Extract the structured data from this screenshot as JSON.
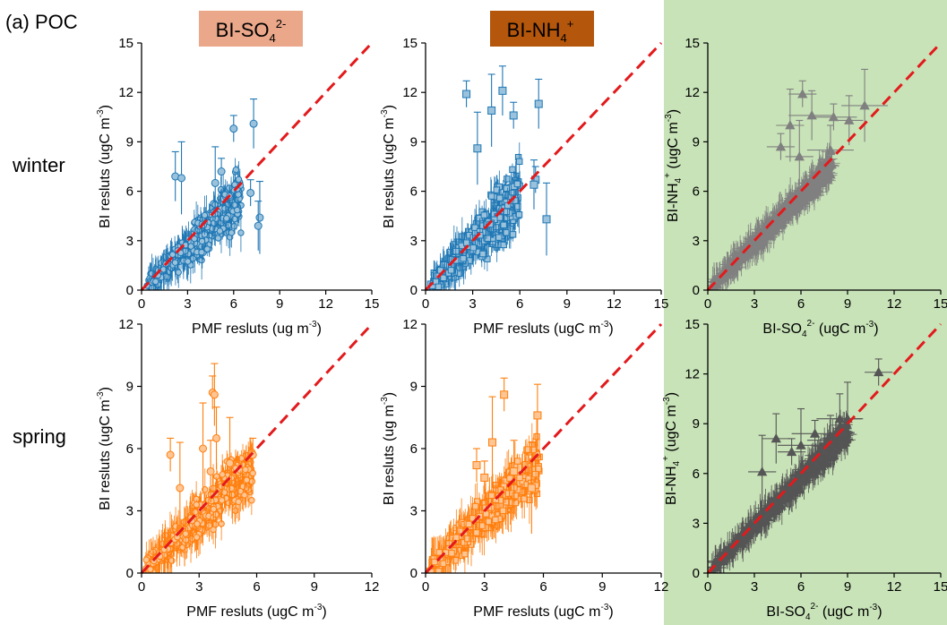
{
  "figure": {
    "panel_label": "(a) POC",
    "row_labels": [
      "winter",
      "spring"
    ],
    "header_badges": [
      {
        "base": "BI-SO",
        "sub": "4",
        "sup": "2-",
        "color": "#eaa78a"
      },
      {
        "base": "BI-NH",
        "sub": "4",
        "sup": "+",
        "color": "#b4560b"
      }
    ],
    "highlight_color": "#c8e3b8"
  },
  "chart_data": [
    {
      "id": "winter-so4",
      "type": "scatter",
      "title": "",
      "marker": "circle",
      "color": "#1f77b4",
      "xlabel": "PMF resluts (ug m",
      "xlabel_sup": "-3",
      "ylabel": "BI resluts (ugC m",
      "ylabel_sup": "-3",
      "xlim": [
        0,
        15
      ],
      "ylim": [
        0,
        15
      ],
      "xticks": [
        "0",
        "3",
        "6",
        "9",
        "12",
        "15"
      ],
      "yticks": [
        "0",
        "3",
        "6",
        "9",
        "12",
        "15"
      ],
      "reference_line": "y = x",
      "cloud": {
        "n": 420,
        "x_range": [
          0.3,
          6.5
        ],
        "slope": 0.85,
        "spread": 1.2
      },
      "points": [
        {
          "x": 6.0,
          "y": 9.8
        },
        {
          "x": 7.3,
          "y": 10.1
        },
        {
          "x": 7.7,
          "y": 4.4
        },
        {
          "x": 7.1,
          "y": 5.9
        },
        {
          "x": 2.2,
          "y": 6.9
        },
        {
          "x": 2.6,
          "y": 6.8
        },
        {
          "x": 5.2,
          "y": 7.2
        },
        {
          "x": 7.6,
          "y": 3.9
        },
        {
          "x": 4.8,
          "y": 6.5
        }
      ]
    },
    {
      "id": "winter-nh4",
      "type": "scatter",
      "title": "",
      "marker": "square",
      "color": "#1f77b4",
      "xlabel": "PMF resluts (ugC m",
      "xlabel_sup": "-3",
      "ylabel": "BI resluts (ugC m",
      "ylabel_sup": "-3",
      "xlim": [
        0,
        15
      ],
      "ylim": [
        0,
        15
      ],
      "xticks": [
        "0",
        "3",
        "6",
        "9",
        "12",
        "15"
      ],
      "yticks": [
        "0",
        "3",
        "6",
        "9",
        "12",
        "15"
      ],
      "reference_line": "y = x",
      "cloud": {
        "n": 420,
        "x_range": [
          0.3,
          6.0
        ],
        "slope": 0.95,
        "spread": 1.4
      },
      "points": [
        {
          "x": 2.6,
          "y": 11.9
        },
        {
          "x": 4.9,
          "y": 12.1
        },
        {
          "x": 4.2,
          "y": 10.9
        },
        {
          "x": 5.6,
          "y": 10.6
        },
        {
          "x": 7.2,
          "y": 11.3
        },
        {
          "x": 7.7,
          "y": 4.3
        },
        {
          "x": 7.0,
          "y": 6.7
        },
        {
          "x": 6.9,
          "y": 6.4
        },
        {
          "x": 3.3,
          "y": 8.6
        }
      ]
    },
    {
      "id": "winter-compare",
      "type": "scatter",
      "title": "",
      "marker": "triangle",
      "color": "#808080",
      "xlabel": "",
      "ylabel": "",
      "xlim": [
        0,
        15
      ],
      "ylim": [
        0,
        15
      ],
      "xticks": [
        "0",
        "3",
        "6",
        "9",
        "12",
        "15"
      ],
      "yticks": [
        "0",
        "3",
        "6",
        "9",
        "12",
        "15"
      ],
      "reference_line": "y = x",
      "cloud": {
        "n": 520,
        "x_range": [
          0.2,
          8.0
        ],
        "slope": 0.95,
        "spread": 0.55
      },
      "points": [
        {
          "x": 6.1,
          "y": 11.9
        },
        {
          "x": 6.7,
          "y": 10.6
        },
        {
          "x": 5.3,
          "y": 10.0
        },
        {
          "x": 8.1,
          "y": 10.5
        },
        {
          "x": 9.1,
          "y": 10.3
        },
        {
          "x": 10.1,
          "y": 11.2
        },
        {
          "x": 4.7,
          "y": 8.7
        },
        {
          "x": 7.9,
          "y": 8.5
        },
        {
          "x": 5.9,
          "y": 8.1
        }
      ]
    },
    {
      "id": "spring-so4",
      "type": "scatter",
      "title": "",
      "marker": "circle",
      "color": "#ff7f0e",
      "xlabel": "PMF resluts (ugC m",
      "xlabel_sup": "-3",
      "ylabel": "BI resluts (ugC m",
      "ylabel_sup": "-3",
      "xlim": [
        0,
        12
      ],
      "ylim": [
        0,
        12
      ],
      "xticks": [
        "0",
        "3",
        "6",
        "9",
        "12"
      ],
      "yticks": [
        "0",
        "3",
        "6",
        "9",
        "12"
      ],
      "reference_line": "y = x",
      "cloud": {
        "n": 420,
        "x_range": [
          0.2,
          5.8
        ],
        "slope": 0.9,
        "spread": 1.0
      },
      "points": [
        {
          "x": 3.7,
          "y": 8.7
        },
        {
          "x": 3.8,
          "y": 8.6
        },
        {
          "x": 3.2,
          "y": 6.0
        },
        {
          "x": 1.5,
          "y": 5.7
        },
        {
          "x": 3.6,
          "y": 4.9
        },
        {
          "x": 4.6,
          "y": 5.3
        },
        {
          "x": 5.8,
          "y": 5.7
        },
        {
          "x": 3.9,
          "y": 6.5
        },
        {
          "x": 2.0,
          "y": 4.1
        }
      ]
    },
    {
      "id": "spring-nh4",
      "type": "scatter",
      "title": "",
      "marker": "square",
      "color": "#ff7f0e",
      "xlabel": "PMF resluts (ugC m",
      "xlabel_sup": "-3",
      "ylabel": "BI resluts (ug m",
      "ylabel_sup": "-3",
      "xlim": [
        0,
        12
      ],
      "ylim": [
        0,
        12
      ],
      "xticks": [
        "0",
        "3",
        "6",
        "9",
        "12"
      ],
      "yticks": [
        "0",
        "3",
        "6",
        "9",
        "12"
      ],
      "reference_line": "y = x",
      "cloud": {
        "n": 420,
        "x_range": [
          0.2,
          5.8
        ],
        "slope": 0.9,
        "spread": 1.0
      },
      "points": [
        {
          "x": 4.0,
          "y": 8.6
        },
        {
          "x": 5.7,
          "y": 7.6
        },
        {
          "x": 3.4,
          "y": 6.3
        },
        {
          "x": 2.6,
          "y": 5.2
        },
        {
          "x": 4.5,
          "y": 4.9
        },
        {
          "x": 5.4,
          "y": 4.1
        },
        {
          "x": 3.0,
          "y": 4.6
        }
      ]
    },
    {
      "id": "spring-compare",
      "type": "scatter",
      "title": "",
      "marker": "triangle",
      "color": "#555555",
      "xlabel": "BI-SO",
      "xlabel_sub": "4",
      "xlabel_sup": "2-",
      "xlabel_tail": " (ugC m",
      "xlabel_tail_sup": "-3",
      "ylabel": "BI-NH",
      "ylabel_sub": "4",
      "ylabel_sup": "+",
      "ylabel_tail": " (ugC m",
      "ylabel_tail_sup": "-3",
      "xlim": [
        0,
        15
      ],
      "ylim": [
        0,
        15
      ],
      "xticks": [
        "0",
        "3",
        "6",
        "9",
        "12",
        "15"
      ],
      "yticks": [
        "0",
        "3",
        "6",
        "9",
        "12",
        "15"
      ],
      "reference_line": "y = x",
      "cloud": {
        "n": 520,
        "x_range": [
          0.2,
          9.0
        ],
        "slope": 0.95,
        "spread": 0.5
      },
      "points": [
        {
          "x": 11.0,
          "y": 12.1
        },
        {
          "x": 8.5,
          "y": 9.3
        },
        {
          "x": 9.0,
          "y": 9.3
        },
        {
          "x": 6.9,
          "y": 8.4
        },
        {
          "x": 4.4,
          "y": 8.1
        },
        {
          "x": 6.0,
          "y": 7.7
        },
        {
          "x": 5.4,
          "y": 7.3
        },
        {
          "x": 7.9,
          "y": 8.0
        },
        {
          "x": 3.5,
          "y": 6.1
        }
      ]
    }
  ],
  "extra_labels": {
    "winter_compare_xlabel": {
      "base": "BI-SO",
      "sub": "4",
      "sup": "2-",
      "tail": " (ugC m",
      "tail_sup": "-3",
      "close": ")"
    },
    "winter_compare_ylabel": {
      "base": "BI-NH",
      "sub": "4",
      "sup": "+",
      "tail": " (ugC m",
      "tail_sup": "-3",
      "close": ")"
    }
  }
}
